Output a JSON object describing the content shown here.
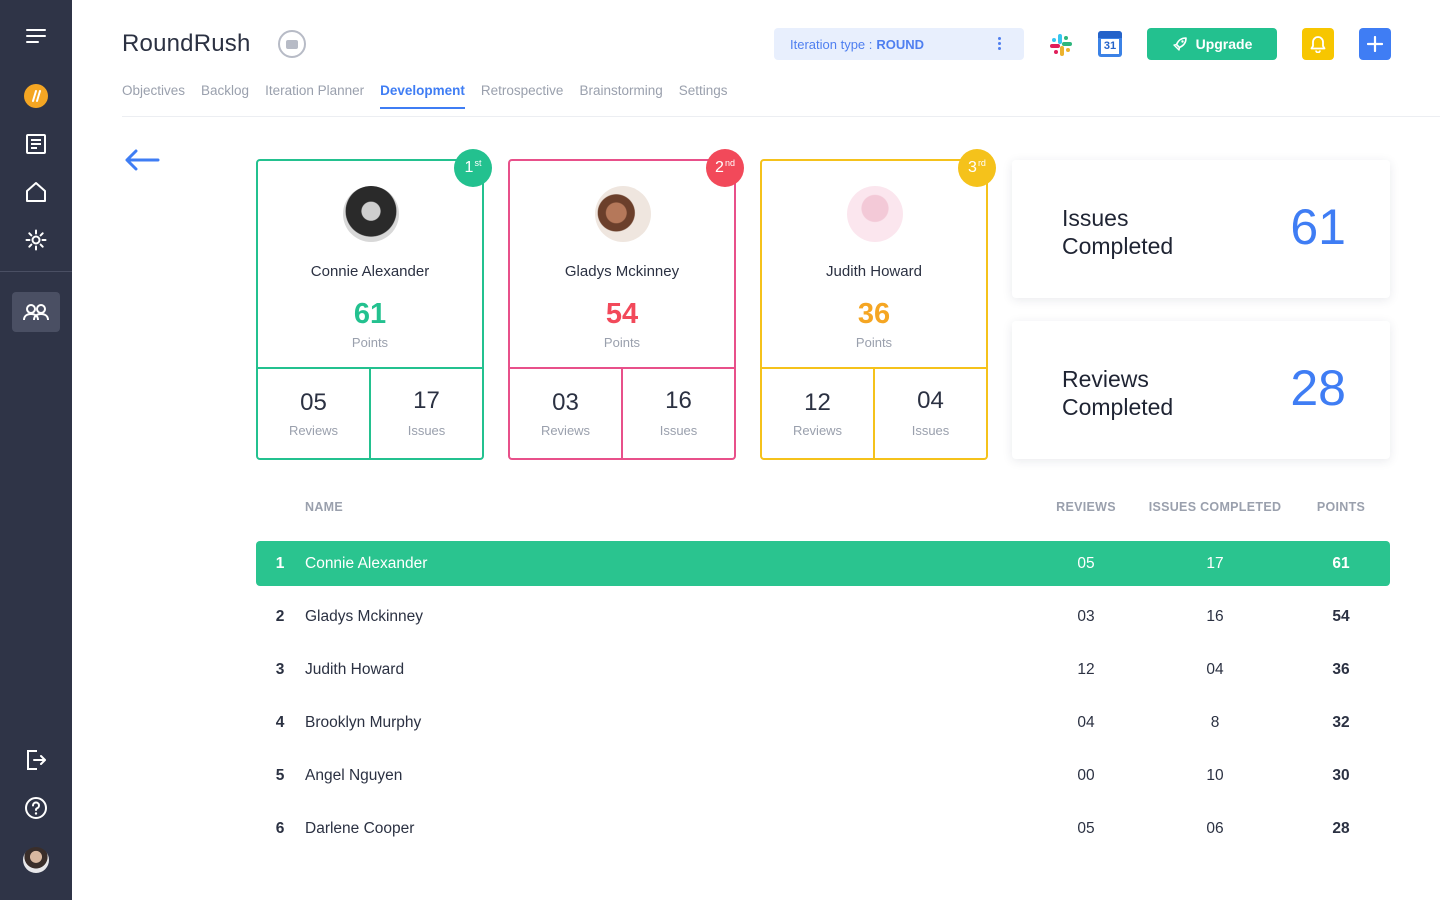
{
  "app": {
    "title": "RoundRush"
  },
  "header": {
    "iteration_label": "Iteration type :",
    "iteration_value": "ROUND",
    "upgrade_label": "Upgrade",
    "calendar_day": "31"
  },
  "tabs": [
    {
      "label": "Objectives"
    },
    {
      "label": "Backlog"
    },
    {
      "label": "Iteration Planner"
    },
    {
      "label": "Development",
      "active": true
    },
    {
      "label": "Retrospective"
    },
    {
      "label": "Brainstorming"
    },
    {
      "label": "Settings"
    }
  ],
  "podium": [
    {
      "rank": "1",
      "suffix": "st",
      "name": "Connie Alexander",
      "points": "61",
      "points_label": "Points",
      "reviews": "05",
      "reviews_label": "Reviews",
      "issues": "17",
      "issues_label": "Issues"
    },
    {
      "rank": "2",
      "suffix": "nd",
      "name": "Gladys Mckinney",
      "points": "54",
      "points_label": "Points",
      "reviews": "03",
      "reviews_label": "Reviews",
      "issues": "16",
      "issues_label": "Issues"
    },
    {
      "rank": "3",
      "suffix": "rd",
      "name": "Judith Howard",
      "points": "36",
      "points_label": "Points",
      "reviews": "12",
      "reviews_label": "Reviews",
      "issues": "04",
      "issues_label": "Issues"
    }
  ],
  "summary": [
    {
      "label": "Issues Completed",
      "value": "61"
    },
    {
      "label": "Reviews Completed",
      "value": "28"
    }
  ],
  "table": {
    "headers": {
      "name": "NAME",
      "reviews": "REVIEWS",
      "issues": "ISSUES COMPLETED",
      "points": "POINTS"
    },
    "rows": [
      {
        "rank": "1",
        "name": "Connie Alexander",
        "reviews": "05",
        "issues": "17",
        "points": "61"
      },
      {
        "rank": "2",
        "name": "Gladys Mckinney",
        "reviews": "03",
        "issues": "16",
        "points": "54"
      },
      {
        "rank": "3",
        "name": "Judith Howard",
        "reviews": "12",
        "issues": "04",
        "points": "36"
      },
      {
        "rank": "4",
        "name": "Brooklyn Murphy",
        "reviews": "04",
        "issues": "8",
        "points": "32"
      },
      {
        "rank": "5",
        "name": "Angel Nguyen",
        "reviews": "00",
        "issues": "10",
        "points": "30"
      },
      {
        "rank": "6",
        "name": "Darlene Cooper",
        "reviews": "05",
        "issues": "06",
        "points": "28"
      }
    ]
  },
  "icons": {
    "sidebar": [
      "menu-icon",
      "logo-icon",
      "document-icon",
      "home-icon",
      "settings-icon",
      "team-icon",
      "logout-icon",
      "help-icon",
      "user-avatar"
    ],
    "header": [
      "video-icon",
      "slack-icon",
      "calendar-icon",
      "rocket-icon",
      "bell-icon",
      "plus-icon",
      "back-arrow-icon"
    ]
  },
  "colors": {
    "sidebar": "#2f3447",
    "accent_blue": "#3f7df4",
    "green": "#23c18f",
    "pink": "#e8508a",
    "red": "#f2495a",
    "yellow": "#f5c21b",
    "orange": "#f5a623"
  }
}
